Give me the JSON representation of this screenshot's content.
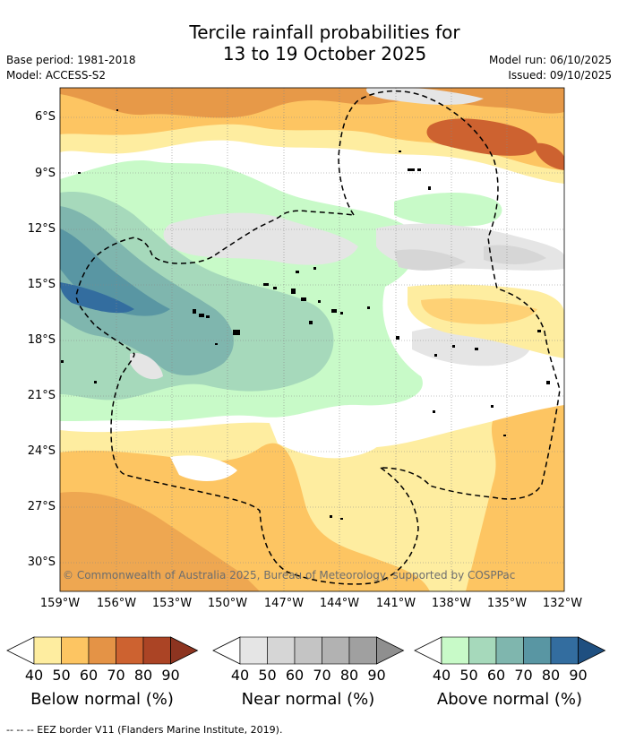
{
  "title_line1": "Tercile rainfall probabilities for",
  "title_line2": "13 to 19 October 2025",
  "base_period": "Base period: 1981-2018",
  "model": "Model: ACCESS-S2",
  "model_run": "Model run: 06/10/2025",
  "issued": "Issued: 09/10/2025",
  "copyright": "© Commonwealth of Australia 2025, Bureau of Meteorology, supported by COSPPac",
  "footer": "--  --  -- EEZ border V11 (Flanders Marine Institute, 2019).",
  "lat_labels": [
    "6°S",
    "9°S",
    "12°S",
    "15°S",
    "18°S",
    "21°S",
    "24°S",
    "27°S",
    "30°S"
  ],
  "lon_labels": [
    "159°W",
    "156°W",
    "153°W",
    "150°W",
    "147°W",
    "144°W",
    "141°W",
    "138°W",
    "135°W",
    "132°W"
  ],
  "colorbars": [
    {
      "title": "Below normal (%)",
      "ticks": [
        "40",
        "50",
        "60",
        "70",
        "80",
        "90"
      ],
      "colors": [
        "#feeda0",
        "#fdc562",
        "#e49346",
        "#cd6230",
        "#ab4425",
        "#8d3420"
      ]
    },
    {
      "title": "Near normal (%)",
      "ticks": [
        "40",
        "50",
        "60",
        "70",
        "80",
        "90"
      ],
      "colors": [
        "#e5e5e5",
        "#d6d6d6",
        "#c4c4c4",
        "#b2b2b2",
        "#a0a0a0",
        "#8f8f8f"
      ]
    },
    {
      "title": "Above normal (%)",
      "ticks": [
        "40",
        "50",
        "60",
        "70",
        "80",
        "90"
      ],
      "colors": [
        "#c8fac8",
        "#a6d9bb",
        "#7fb6ae",
        "#5996a3",
        "#336d9f",
        "#1f4f80"
      ]
    }
  ]
}
